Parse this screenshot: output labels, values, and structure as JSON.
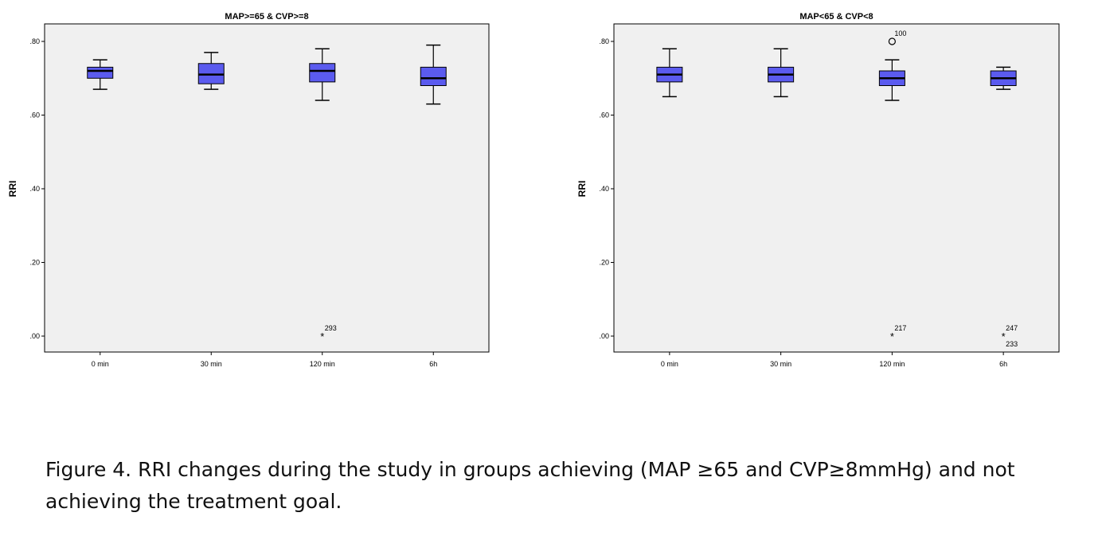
{
  "chart_data": [
    {
      "type": "box",
      "title": "MAP>=65 & CVP>=8",
      "ylabel": "RRI",
      "xlabel": "",
      "ylim": [
        0,
        0.8
      ],
      "yticks": [
        ".00",
        ".20",
        ".40",
        ".60",
        ".80"
      ],
      "categories": [
        "0 min",
        "30 min",
        "120 min",
        "6h"
      ],
      "boxes": [
        {
          "min": 0.67,
          "q1": 0.7,
          "median": 0.72,
          "q3": 0.73,
          "max": 0.75
        },
        {
          "min": 0.67,
          "q1": 0.685,
          "median": 0.71,
          "q3": 0.74,
          "max": 0.77
        },
        {
          "min": 0.64,
          "q1": 0.69,
          "median": 0.72,
          "q3": 0.74,
          "max": 0.78
        },
        {
          "min": 0.63,
          "q1": 0.68,
          "median": 0.7,
          "q3": 0.73,
          "max": 0.79
        }
      ],
      "outliers": [
        {
          "category": "120 min",
          "value": 0.0,
          "marker": "star",
          "label": "293"
        }
      ],
      "box_color": "#5b5bef",
      "plot_bg": "#f0f0f0",
      "grid": false
    },
    {
      "type": "box",
      "title": "MAP<65 & CVP<8",
      "ylabel": "RRI",
      "xlabel": "",
      "ylim": [
        0,
        0.8
      ],
      "yticks": [
        ".00",
        ".20",
        ".40",
        ".60",
        ".80"
      ],
      "categories": [
        "0 min",
        "30 min",
        "120 min",
        "6h"
      ],
      "boxes": [
        {
          "min": 0.65,
          "q1": 0.69,
          "median": 0.71,
          "q3": 0.73,
          "max": 0.78
        },
        {
          "min": 0.65,
          "q1": 0.69,
          "median": 0.71,
          "q3": 0.73,
          "max": 0.78
        },
        {
          "min": 0.64,
          "q1": 0.68,
          "median": 0.7,
          "q3": 0.72,
          "max": 0.75
        },
        {
          "min": 0.67,
          "q1": 0.68,
          "median": 0.7,
          "q3": 0.72,
          "max": 0.73
        }
      ],
      "outliers": [
        {
          "category": "120 min",
          "value": 0.8,
          "marker": "circle",
          "label": "100"
        },
        {
          "category": "120 min",
          "value": 0.0,
          "marker": "star",
          "label": "217"
        },
        {
          "category": "6h",
          "value": 0.0,
          "marker": "star",
          "label": "247"
        },
        {
          "category": "6h",
          "value": 0.0,
          "marker": "star",
          "label": "233"
        }
      ],
      "box_color": "#5b5bef",
      "plot_bg": "#f0f0f0",
      "grid": false
    }
  ],
  "caption": "Figure 4. RRI changes during the study in groups achieving (MAP ≥65 and CVP≥8mmHg) and not achieving the treatment goal."
}
